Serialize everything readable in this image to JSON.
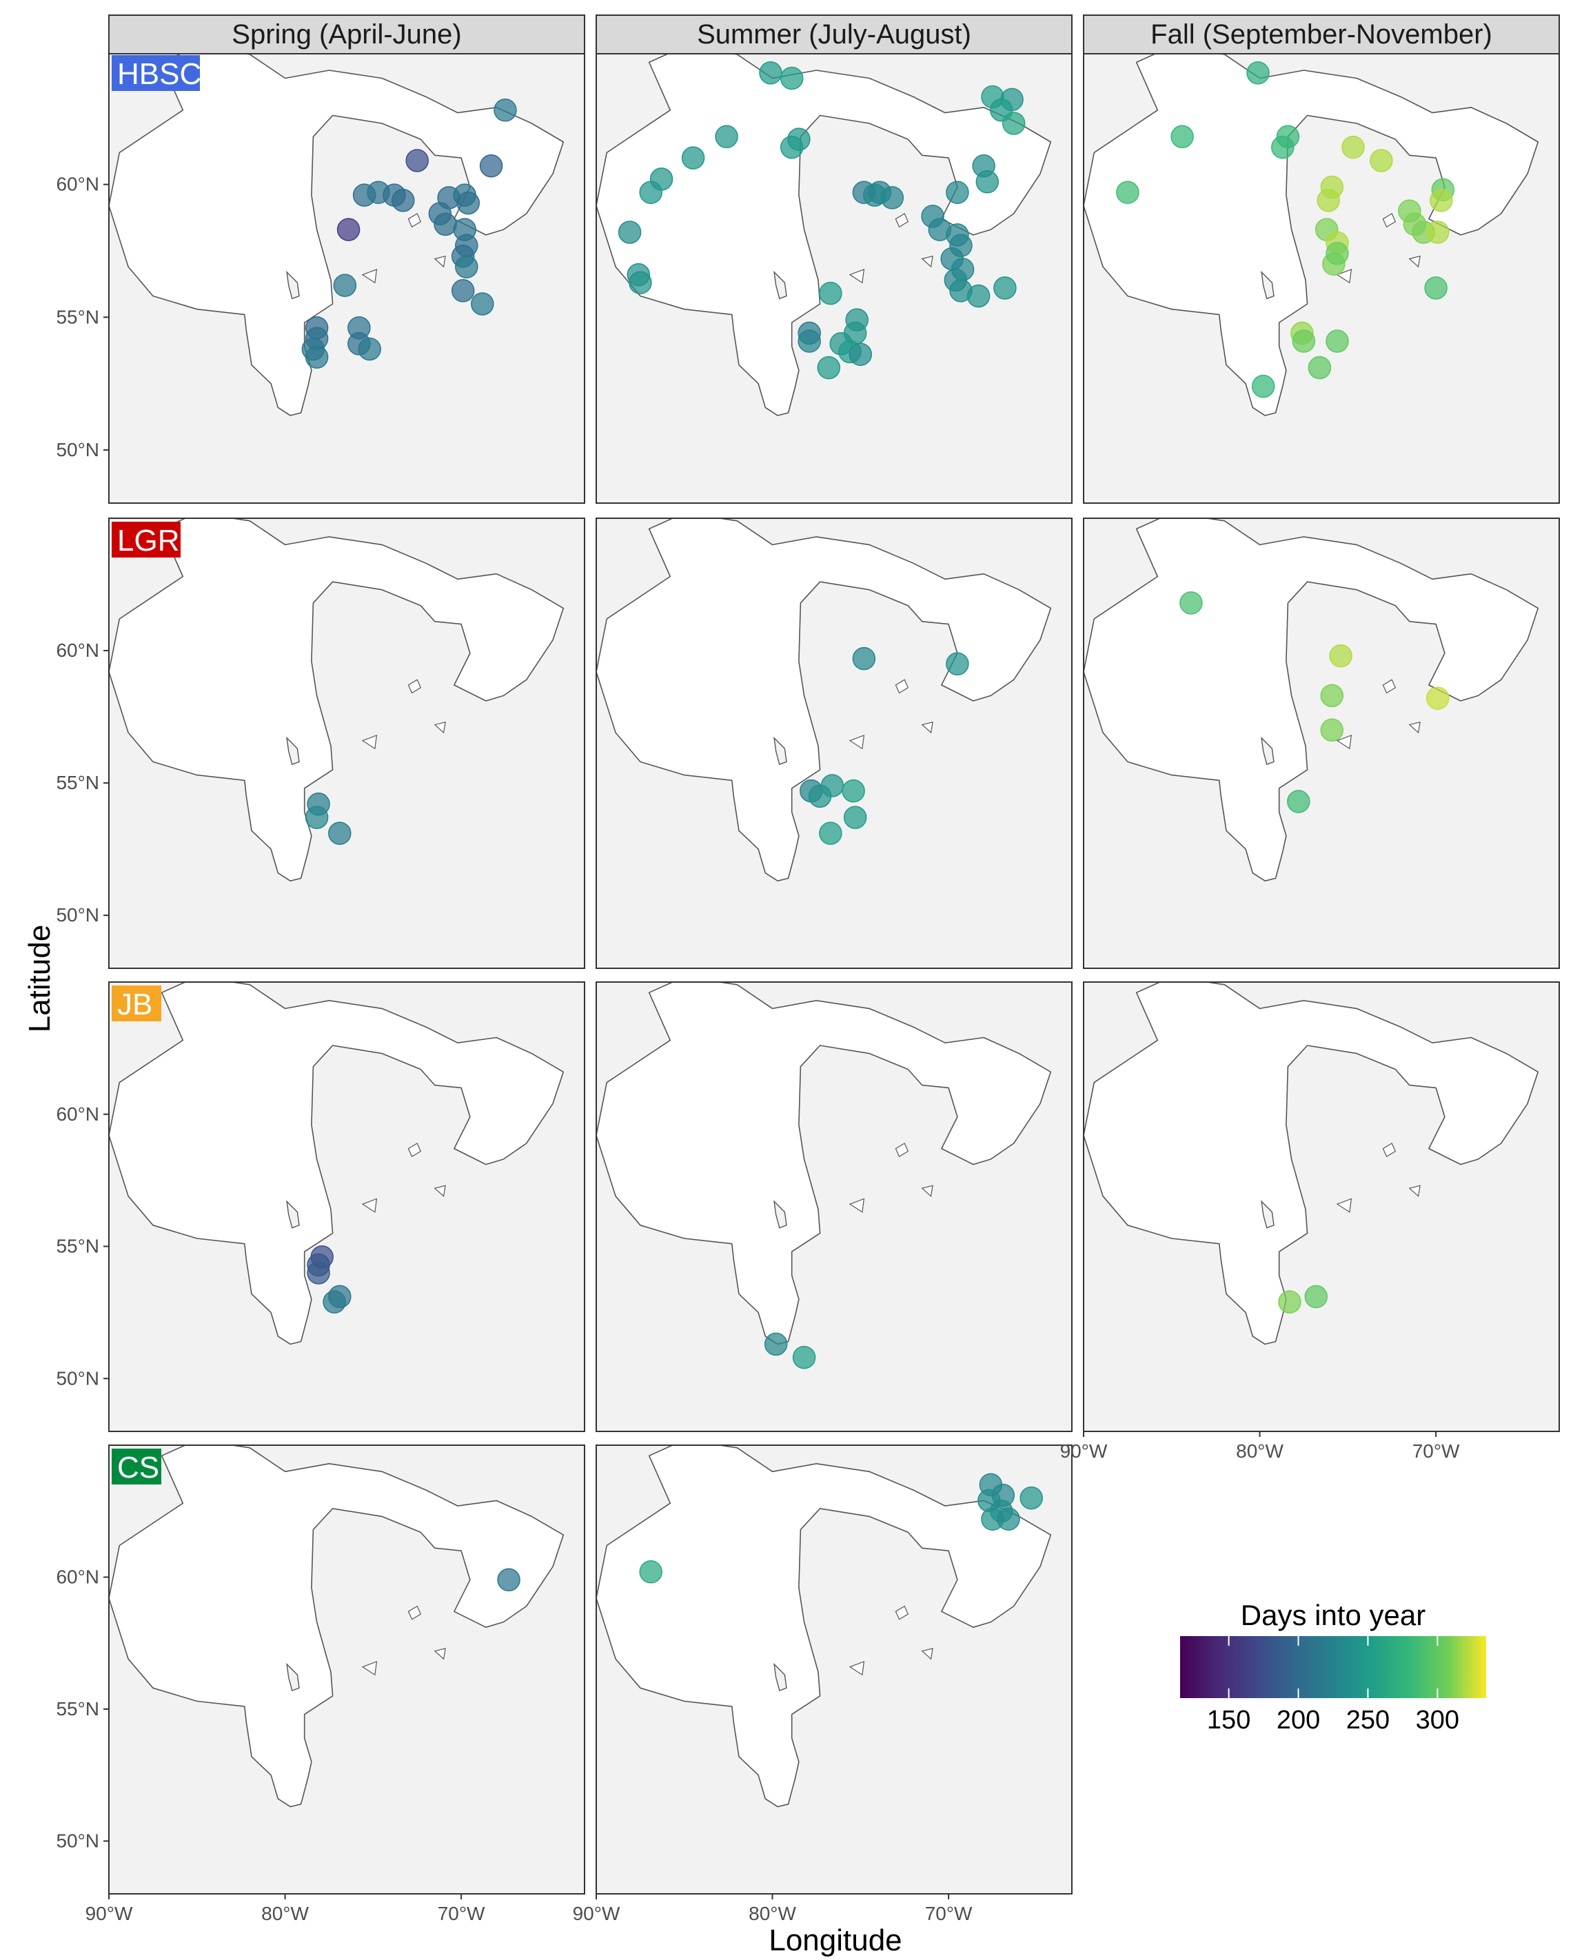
{
  "figure": {
    "xlabel": "Longitude",
    "ylabel": "Latitude",
    "columns": [
      "Spring (April-June)",
      "Summer (July-August)",
      "Fall (September-November)"
    ],
    "rows": [
      {
        "label": "HBSC",
        "color": "#4169e1"
      },
      {
        "label": "LGR",
        "color": "#cc0000"
      },
      {
        "label": "JB",
        "color": "#f5a623"
      },
      {
        "label": "CS",
        "color": "#008a3e"
      }
    ],
    "lat_ticks": [
      "50°N",
      "55°N",
      "60°N"
    ],
    "lon_ticks": [
      "90°W",
      "80°W",
      "70°W"
    ],
    "panel_background": "#f2f2f2",
    "water_color": "#ffffff"
  },
  "legend": {
    "title": "Days into year",
    "tick_labels": [
      "150",
      "200",
      "250",
      "300"
    ],
    "tick_values": [
      150,
      200,
      250,
      300
    ],
    "range": [
      115,
      335
    ],
    "colormap": "viridis"
  },
  "chart_data": {
    "type": "scatter",
    "x_unit": "degrees longitude",
    "y_unit": "degrees latitude",
    "xlim": [
      -90,
      -63
    ],
    "ylim": [
      48,
      65
    ],
    "color_variable": "Days into year",
    "panels": [
      {
        "row": "HBSC",
        "column": "Spring (April-June)",
        "points": [
          [
            -67.5,
            62.8,
            215
          ],
          [
            -72.5,
            60.9,
            175
          ],
          [
            -68.3,
            60.7,
            195
          ],
          [
            -75.5,
            59.6,
            205
          ],
          [
            -74.7,
            59.7,
            210
          ],
          [
            -73.8,
            59.6,
            205
          ],
          [
            -73.3,
            59.4,
            200
          ],
          [
            -70.7,
            59.5,
            205
          ],
          [
            -69.8,
            59.6,
            210
          ],
          [
            -69.6,
            59.3,
            205
          ],
          [
            -71.2,
            58.9,
            205
          ],
          [
            -70.9,
            58.5,
            205
          ],
          [
            -69.8,
            58.3,
            210
          ],
          [
            -69.7,
            57.7,
            205
          ],
          [
            -69.9,
            57.3,
            205
          ],
          [
            -69.7,
            56.9,
            215
          ],
          [
            -69.9,
            56.0,
            205
          ],
          [
            -68.8,
            55.5,
            215
          ],
          [
            -76.4,
            58.3,
            160
          ],
          [
            -76.6,
            56.2,
            215
          ],
          [
            -78.2,
            54.6,
            200
          ],
          [
            -78.2,
            54.2,
            205
          ],
          [
            -78.4,
            53.8,
            210
          ],
          [
            -78.2,
            53.5,
            215
          ],
          [
            -75.8,
            54.6,
            210
          ],
          [
            -75.8,
            54.0,
            205
          ],
          [
            -75.2,
            53.8,
            215
          ]
        ]
      },
      {
        "row": "HBSC",
        "column": "Summer (July-August)",
        "points": [
          [
            -80.1,
            64.2,
            250
          ],
          [
            -78.9,
            64.0,
            255
          ],
          [
            -67.5,
            63.3,
            255
          ],
          [
            -66.4,
            63.2,
            245
          ],
          [
            -67.0,
            62.8,
            250
          ],
          [
            -66.3,
            62.3,
            260
          ],
          [
            -78.5,
            61.7,
            245
          ],
          [
            -78.9,
            61.4,
            250
          ],
          [
            -82.6,
            61.8,
            245
          ],
          [
            -84.5,
            61.0,
            245
          ],
          [
            -86.3,
            60.2,
            245
          ],
          [
            -86.9,
            59.7,
            245
          ],
          [
            -88.1,
            58.2,
            235
          ],
          [
            -87.6,
            56.6,
            240
          ],
          [
            -87.5,
            56.3,
            240
          ],
          [
            -76.7,
            55.9,
            250
          ],
          [
            -74.8,
            59.7,
            220
          ],
          [
            -73.9,
            59.7,
            225
          ],
          [
            -73.2,
            59.5,
            225
          ],
          [
            -74.2,
            59.6,
            230
          ],
          [
            -70.9,
            58.8,
            225
          ],
          [
            -70.5,
            58.3,
            225
          ],
          [
            -69.5,
            58.1,
            230
          ],
          [
            -69.3,
            57.7,
            225
          ],
          [
            -69.8,
            57.2,
            225
          ],
          [
            -69.2,
            56.8,
            230
          ],
          [
            -69.6,
            56.4,
            230
          ],
          [
            -69.3,
            56.0,
            235
          ],
          [
            -68.3,
            55.8,
            240
          ],
          [
            -66.8,
            56.1,
            245
          ],
          [
            -68.0,
            60.7,
            235
          ],
          [
            -67.8,
            60.1,
            240
          ],
          [
            -69.5,
            59.7,
            230
          ],
          [
            -75.2,
            54.9,
            240
          ],
          [
            -75.3,
            54.4,
            245
          ],
          [
            -76.1,
            54.0,
            245
          ],
          [
            -75.6,
            53.7,
            250
          ],
          [
            -75.0,
            53.6,
            235
          ],
          [
            -76.8,
            53.1,
            250
          ],
          [
            -77.9,
            54.4,
            220
          ],
          [
            -77.9,
            54.1,
            225
          ]
        ]
      },
      {
        "row": "HBSC",
        "column": "Fall (September-November)",
        "points": [
          [
            -80.1,
            64.2,
            270
          ],
          [
            -84.4,
            61.8,
            280
          ],
          [
            -78.4,
            61.8,
            280
          ],
          [
            -78.7,
            61.4,
            280
          ],
          [
            -74.7,
            61.4,
            320
          ],
          [
            -73.1,
            60.9,
            320
          ],
          [
            -75.9,
            59.9,
            320
          ],
          [
            -76.1,
            59.4,
            320
          ],
          [
            -76.2,
            58.3,
            310
          ],
          [
            -75.6,
            57.8,
            320
          ],
          [
            -75.8,
            57.0,
            310
          ],
          [
            -75.6,
            57.4,
            305
          ],
          [
            -71.5,
            59.0,
            310
          ],
          [
            -71.2,
            58.5,
            310
          ],
          [
            -70.7,
            58.2,
            310
          ],
          [
            -69.9,
            58.2,
            320
          ],
          [
            -69.6,
            59.8,
            300
          ],
          [
            -69.7,
            59.4,
            320
          ],
          [
            -70.0,
            56.1,
            290
          ],
          [
            -87.5,
            59.7,
            285
          ],
          [
            -77.6,
            54.4,
            315
          ],
          [
            -77.5,
            54.1,
            305
          ],
          [
            -75.6,
            54.1,
            300
          ],
          [
            -76.6,
            53.1,
            300
          ],
          [
            -79.8,
            52.4,
            280
          ]
        ]
      },
      {
        "row": "LGR",
        "column": "Spring (April-June)",
        "points": [
          [
            -78.1,
            54.2,
            220
          ],
          [
            -78.2,
            53.7,
            230
          ],
          [
            -76.9,
            53.1,
            220
          ]
        ]
      },
      {
        "row": "LGR",
        "column": "Summer (July-August)",
        "points": [
          [
            -74.8,
            59.7,
            230
          ],
          [
            -69.5,
            59.5,
            240
          ],
          [
            -77.8,
            54.7,
            225
          ],
          [
            -77.3,
            54.5,
            240
          ],
          [
            -76.6,
            54.9,
            245
          ],
          [
            -75.4,
            54.7,
            255
          ],
          [
            -75.3,
            53.7,
            250
          ],
          [
            -76.7,
            53.1,
            255
          ]
        ]
      },
      {
        "row": "LGR",
        "column": "Fall (September-November)",
        "points": [
          [
            -83.9,
            61.8,
            290
          ],
          [
            -75.4,
            59.8,
            320
          ],
          [
            -75.9,
            58.3,
            310
          ],
          [
            -75.9,
            57.0,
            310
          ],
          [
            -69.9,
            58.2,
            325
          ],
          [
            -77.8,
            54.3,
            285
          ]
        ]
      },
      {
        "row": "JB",
        "column": "Spring (April-June)",
        "points": [
          [
            -77.9,
            54.6,
            175
          ],
          [
            -78.1,
            54.3,
            180
          ],
          [
            -78.1,
            54.0,
            185
          ],
          [
            -76.9,
            53.1,
            210
          ],
          [
            -77.2,
            52.9,
            215
          ]
        ]
      },
      {
        "row": "JB",
        "column": "Summer (July-August)",
        "points": [
          [
            -79.8,
            51.3,
            230
          ],
          [
            -78.2,
            50.8,
            255
          ]
        ]
      },
      {
        "row": "JB",
        "column": "Fall (September-November)",
        "points": [
          [
            -78.3,
            52.9,
            310
          ],
          [
            -76.8,
            53.1,
            300
          ]
        ]
      },
      {
        "row": "CS",
        "column": "Spring (April-June)",
        "points": [
          [
            -67.3,
            59.9,
            210
          ]
        ]
      },
      {
        "row": "CS",
        "column": "Summer (July-August)",
        "points": [
          [
            -67.6,
            63.5,
            230
          ],
          [
            -66.9,
            63.1,
            230
          ],
          [
            -67.7,
            62.9,
            235
          ],
          [
            -67.0,
            62.5,
            235
          ],
          [
            -67.5,
            62.2,
            240
          ],
          [
            -66.6,
            62.2,
            235
          ],
          [
            -65.3,
            63.0,
            245
          ],
          [
            -86.9,
            60.2,
            265
          ]
        ]
      }
    ]
  }
}
